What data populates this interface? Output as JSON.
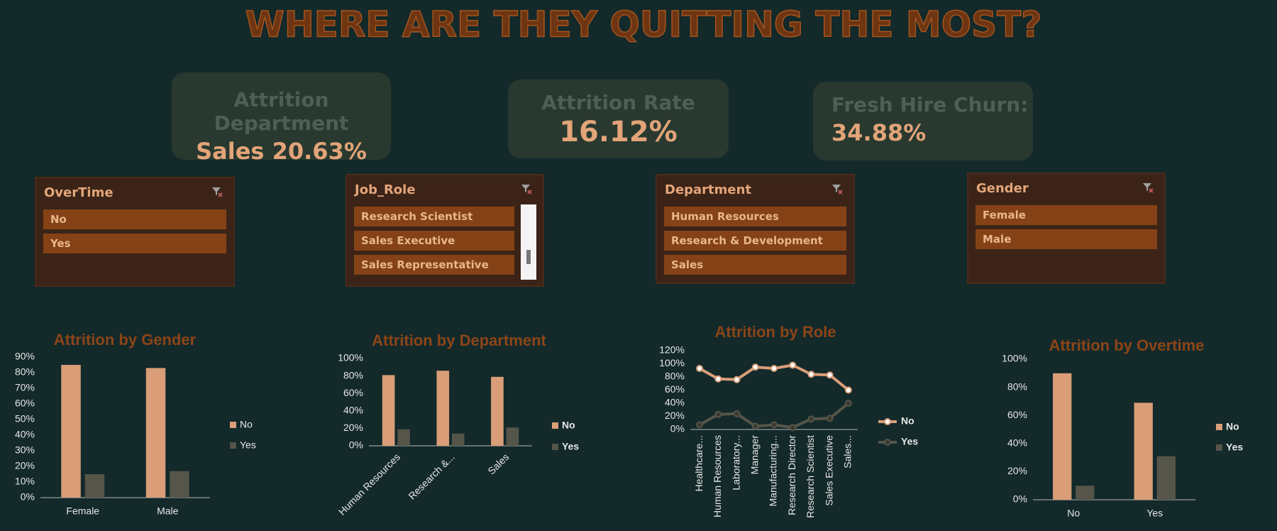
{
  "title": "WHERE ARE THEY QUITTING THE MOST?",
  "kpis": [
    {
      "label": "Attrition Department",
      "value": "Sales 20.63%"
    },
    {
      "label": "Attrition Rate",
      "value": "16.12%"
    },
    {
      "label": "Fresh Hire Churn:",
      "value": "34.88%"
    }
  ],
  "slicers": [
    {
      "title": "OverTime",
      "items": [
        "No",
        "Yes"
      ]
    },
    {
      "title": "Job_Role",
      "items": [
        "Research Scientist",
        "Sales Executive",
        "Sales Representative"
      ]
    },
    {
      "title": "Department",
      "items": [
        "Human Resources",
        "Research & Development",
        "Sales"
      ]
    },
    {
      "title": "Gender",
      "items": [
        "Female",
        "Male"
      ]
    }
  ],
  "chart_data": [
    {
      "type": "bar",
      "title": "Attrition by Gender",
      "categories": [
        "Female",
        "Male"
      ],
      "series": [
        {
          "name": "No",
          "color": "#d99e78",
          "values": [
            85,
            83
          ]
        },
        {
          "name": "Yes",
          "color": "#55554a",
          "values": [
            15,
            17
          ]
        }
      ],
      "ylim": [
        0,
        90
      ],
      "yticks": [
        {
          "value": 0,
          "label": "0%"
        },
        {
          "value": 10,
          "label": "10%"
        },
        {
          "value": 20,
          "label": "20%"
        },
        {
          "value": 30,
          "label": "30%"
        },
        {
          "value": 40,
          "label": "40%"
        },
        {
          "value": 50,
          "label": "50%"
        },
        {
          "value": 60,
          "label": "60%"
        },
        {
          "value": 70,
          "label": "70%"
        },
        {
          "value": 80,
          "label": "80%"
        },
        {
          "value": 90,
          "label": "90%"
        }
      ],
      "legend": "right"
    },
    {
      "type": "bar",
      "title": "Attrition by Department",
      "categories": [
        "Human Resources",
        "Research &...",
        "Sales"
      ],
      "series": [
        {
          "name": "No",
          "color": "#d99e78",
          "values": [
            81,
            86,
            79
          ]
        },
        {
          "name": "Yes",
          "color": "#55554a",
          "values": [
            19,
            14,
            21
          ]
        }
      ],
      "ylim": [
        0,
        100
      ],
      "yticks": [
        {
          "value": 0,
          "label": "0%"
        },
        {
          "value": 20,
          "label": "20%"
        },
        {
          "value": 40,
          "label": "40%"
        },
        {
          "value": 60,
          "label": "60%"
        },
        {
          "value": 80,
          "label": "80%"
        },
        {
          "value": 100,
          "label": "100%"
        }
      ],
      "legend": "right"
    },
    {
      "type": "line",
      "title": "Attrition by Role",
      "categories": [
        "Healthcare...",
        "Human Resources",
        "Laboratory...",
        "Manager",
        "Manufacturing...",
        "Research Director",
        "Research Scientist",
        "Sales Executive",
        "Sales..."
      ],
      "series": [
        {
          "name": "No",
          "color": "#d99e78",
          "values": [
            93,
            77,
            76,
            95,
            93,
            98,
            84,
            83,
            60
          ]
        },
        {
          "name": "Yes",
          "color": "#55554a",
          "values": [
            7,
            23,
            24,
            5,
            7,
            3,
            16,
            17,
            40
          ]
        }
      ],
      "ylim": [
        0,
        120
      ],
      "yticks": [
        {
          "value": 0,
          "label": "0%"
        },
        {
          "value": 20,
          "label": "20%"
        },
        {
          "value": 40,
          "label": "40%"
        },
        {
          "value": 60,
          "label": "60%"
        },
        {
          "value": 80,
          "label": "80%"
        },
        {
          "value": 100,
          "label": "100%"
        },
        {
          "value": 120,
          "label": "120%"
        }
      ],
      "legend": "right"
    },
    {
      "type": "bar",
      "title": "Attrition by Overtime",
      "categories": [
        "No",
        "Yes"
      ],
      "series": [
        {
          "name": "No",
          "color": "#d99e78",
          "values": [
            90,
            69
          ]
        },
        {
          "name": "Yes",
          "color": "#55554a",
          "values": [
            10,
            31
          ]
        }
      ],
      "ylim": [
        0,
        100
      ],
      "yticks": [
        {
          "value": 0,
          "label": "0%"
        },
        {
          "value": 20,
          "label": "20%"
        },
        {
          "value": 40,
          "label": "40%"
        },
        {
          "value": 60,
          "label": "60%"
        },
        {
          "value": 80,
          "label": "80%"
        },
        {
          "value": 100,
          "label": "100%"
        }
      ],
      "legend": "right"
    }
  ]
}
